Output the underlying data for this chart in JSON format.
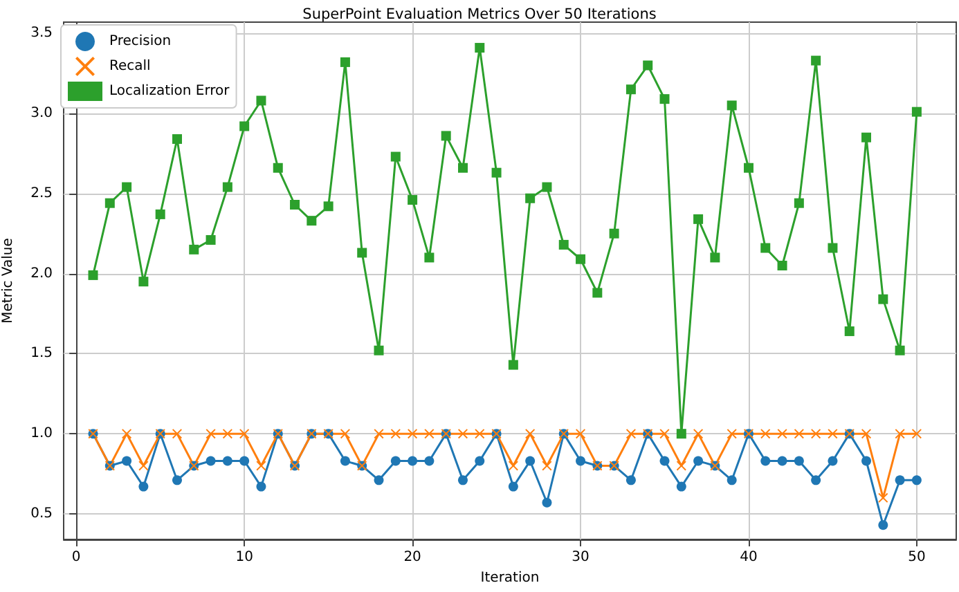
{
  "chart_data": {
    "type": "line",
    "title": "SuperPoint Evaluation Metrics Over 50 Iterations",
    "xlabel": "Iteration",
    "ylabel": "Metric Value",
    "x": [
      1,
      2,
      3,
      4,
      5,
      6,
      7,
      8,
      9,
      10,
      11,
      12,
      13,
      14,
      15,
      16,
      17,
      18,
      19,
      20,
      21,
      22,
      23,
      24,
      25,
      26,
      27,
      28,
      29,
      30,
      31,
      32,
      33,
      34,
      35,
      36,
      37,
      38,
      39,
      40,
      41,
      42,
      43,
      44,
      45,
      46,
      47,
      48,
      49,
      50
    ],
    "xlim": [
      -0.75,
      52.35
    ],
    "xticks": [
      0,
      10,
      20,
      30,
      40,
      50
    ],
    "ylim": [
      0.34,
      3.57
    ],
    "yticks": [
      0.5,
      {
        "value": 1,
        "label": "1.0"
      },
      1.5,
      {
        "value": 2,
        "label": "2.0"
      },
      2.5,
      {
        "value": 3,
        "label": "3.0"
      },
      3.5
    ],
    "grid": true,
    "legend": "top left",
    "series": [
      {
        "name": "Precision",
        "color": "#1f77b4",
        "marker": "circle",
        "values": [
          1.0,
          0.8,
          0.83,
          0.67,
          1.0,
          0.71,
          0.8,
          0.83,
          0.83,
          0.83,
          0.67,
          1.0,
          0.8,
          1.0,
          1.0,
          0.83,
          0.8,
          0.71,
          0.83,
          0.83,
          0.83,
          1.0,
          0.71,
          0.83,
          1.0,
          0.67,
          0.83,
          0.57,
          1.0,
          0.83,
          0.8,
          0.8,
          0.71,
          1.0,
          0.83,
          0.67,
          0.83,
          0.8,
          0.71,
          1.0,
          0.83,
          0.83,
          0.83,
          0.71,
          0.83,
          1.0,
          0.83,
          0.43,
          0.71,
          0.71
        ]
      },
      {
        "name": "Recall",
        "color": "#ff7f0e",
        "marker": "cross",
        "values": [
          1,
          0.8,
          1,
          0.8,
          1,
          1,
          0.8,
          1,
          1,
          1,
          0.8,
          1,
          0.8,
          1,
          1,
          1,
          0.8,
          1,
          1,
          1,
          1,
          1,
          1,
          1,
          1,
          0.8,
          1,
          0.8,
          1,
          1,
          0.8,
          0.8,
          1,
          1,
          1,
          0.8,
          1,
          0.8,
          1,
          1,
          1,
          1,
          1,
          1,
          1,
          1,
          1,
          0.6,
          1,
          1
        ]
      },
      {
        "name": "Localization Error",
        "color": "#2ca02c",
        "marker": "square",
        "values": [
          1.99,
          2.44,
          2.54,
          1.95,
          2.37,
          2.84,
          2.15,
          2.21,
          2.54,
          2.92,
          3.08,
          2.66,
          2.43,
          2.33,
          2.42,
          3.32,
          2.13,
          1.52,
          2.73,
          2.46,
          2.1,
          2.86,
          2.66,
          3.41,
          2.63,
          1.43,
          2.47,
          2.54,
          2.18,
          2.09,
          1.88,
          2.25,
          3.15,
          3.3,
          3.09,
          1.0,
          2.34,
          2.1,
          3.05,
          2.66,
          2.16,
          2.05,
          2.44,
          3.33,
          2.16,
          1.64,
          2.85,
          1.84,
          1.52,
          3.01
        ]
      }
    ]
  }
}
